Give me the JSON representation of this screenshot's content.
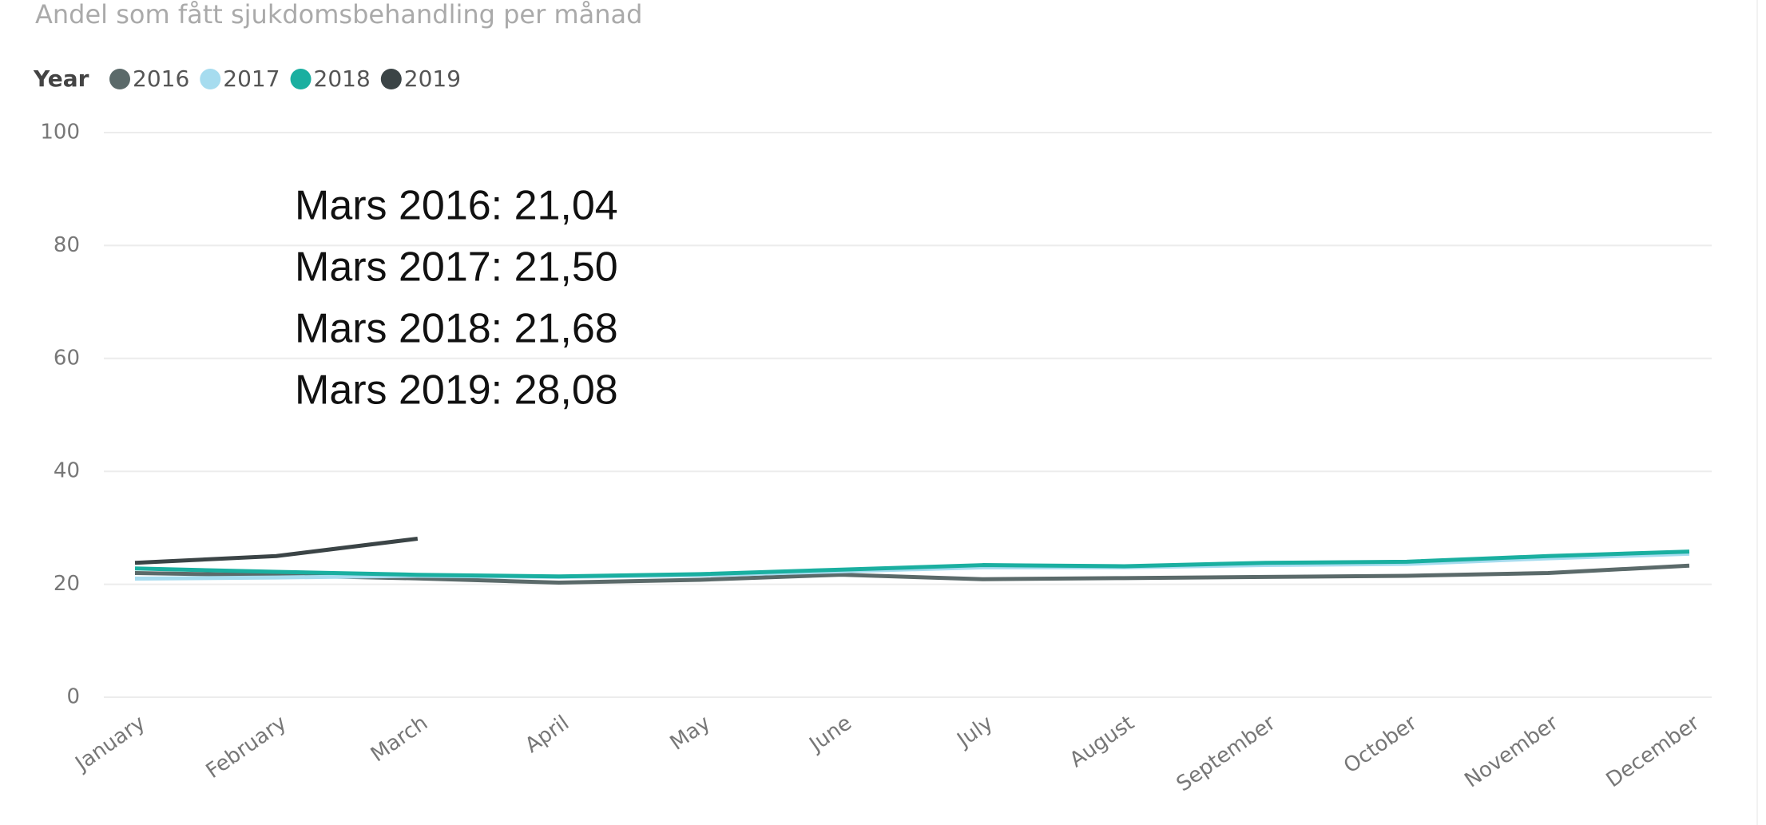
{
  "chart_data": {
    "type": "line",
    "title": "Andel som fått sjukdomsbehandling per månad",
    "legend_title": "Year",
    "categories": [
      "January",
      "February",
      "March",
      "April",
      "May",
      "June",
      "July",
      "August",
      "September",
      "October",
      "November",
      "December"
    ],
    "series": [
      {
        "name": "2016",
        "color": "#5b6a6a",
        "values": [
          22.0,
          21.6,
          21.04,
          20.3,
          20.8,
          21.7,
          20.9,
          21.1,
          21.3,
          21.5,
          22.0,
          23.3
        ]
      },
      {
        "name": "2017",
        "color": "#a6dcef",
        "values": [
          21.0,
          21.2,
          21.5,
          21.3,
          21.6,
          22.3,
          23.0,
          23.0,
          23.4,
          23.6,
          24.6,
          25.4
        ]
      },
      {
        "name": "2018",
        "color": "#1aafa0",
        "values": [
          22.8,
          22.2,
          21.68,
          21.4,
          21.8,
          22.6,
          23.4,
          23.2,
          23.8,
          24.0,
          25.0,
          25.8
        ]
      },
      {
        "name": "2019",
        "color": "#3b4446",
        "values": [
          23.8,
          25.0,
          28.08,
          null,
          null,
          null,
          null,
          null,
          null,
          null,
          null,
          null
        ]
      }
    ],
    "ylim": [
      0,
      100
    ],
    "yticks": [
      0,
      20,
      40,
      60,
      80,
      100
    ],
    "grid": true,
    "annotations": [
      "Mars 2016: 21,04",
      "Mars 2017: 21,50",
      "Mars 2018: 21,68",
      "Mars 2019: 28,08"
    ]
  }
}
